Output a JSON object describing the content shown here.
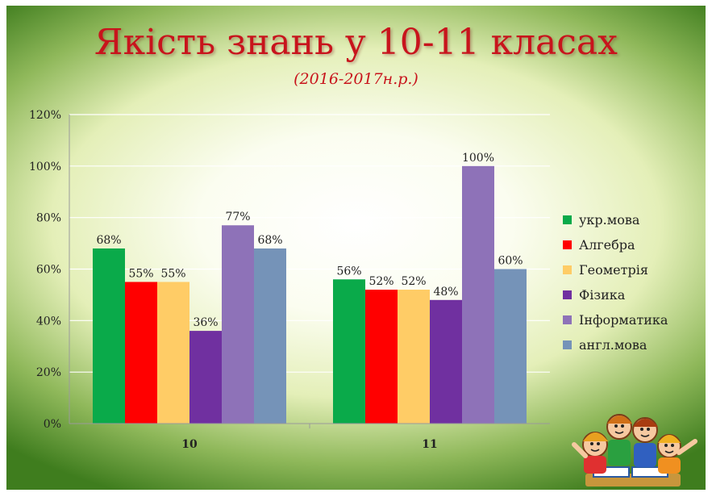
{
  "slide": {
    "title": "Якість знань у 10-11 класах",
    "subtitle": "(2016-2017н.р.)"
  },
  "chart_data": {
    "type": "bar",
    "categories": [
      "10",
      "11"
    ],
    "series": [
      {
        "name": "укр.мова",
        "color": "#0aaa4a",
        "values": [
          68,
          56
        ],
        "labels": [
          "68%",
          "56%"
        ]
      },
      {
        "name": "Алгебра",
        "color": "#ff0000",
        "values": [
          55,
          52
        ],
        "labels": [
          "55%",
          "52%"
        ]
      },
      {
        "name": "Геометрія",
        "color": "#ffcc66",
        "values": [
          55,
          52
        ],
        "labels": [
          "55%",
          "52%"
        ]
      },
      {
        "name": "Фізика",
        "color": "#7030a0",
        "values": [
          36,
          48
        ],
        "labels": [
          "36%",
          "48%"
        ]
      },
      {
        "name": "Інформатика",
        "color": "#8e72b8",
        "values": [
          77,
          100
        ],
        "labels": [
          "77%",
          "100%"
        ]
      },
      {
        "name": "англ.мова",
        "color": "#7593b8",
        "values": [
          68,
          60
        ],
        "labels": [
          "68%",
          "60%"
        ]
      }
    ],
    "yticks": [
      {
        "value": 0,
        "label": "0%"
      },
      {
        "value": 20,
        "label": "20%"
      },
      {
        "value": 40,
        "label": "40%"
      },
      {
        "value": 60,
        "label": "60%"
      },
      {
        "value": 80,
        "label": "80%"
      },
      {
        "value": 100,
        "label": "100%"
      },
      {
        "value": 120,
        "label": "120%"
      }
    ],
    "ylim": [
      0,
      120
    ],
    "grid": true,
    "legend": "right",
    "xlabel": "",
    "ylabel": ""
  },
  "decoration": {
    "illustration": "cartoon-children-icon"
  }
}
